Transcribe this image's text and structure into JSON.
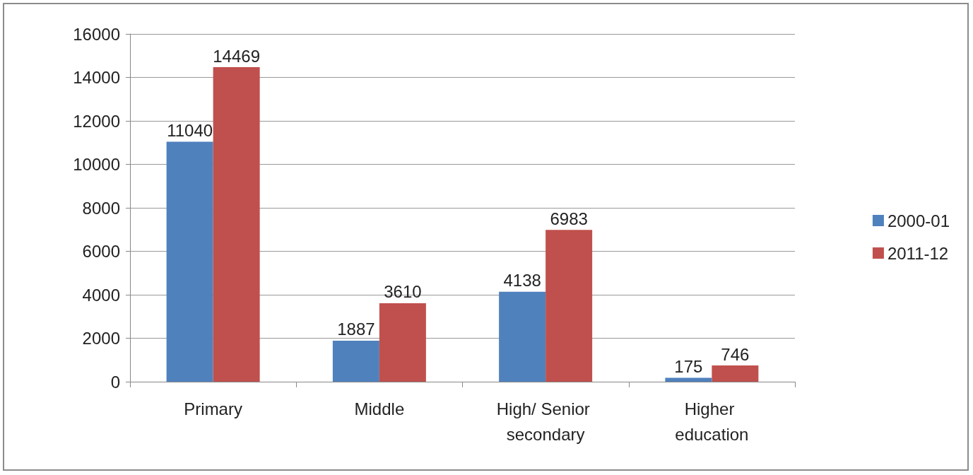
{
  "chart_data": {
    "type": "bar",
    "categories": [
      "Primary",
      "Middle",
      "High/ Senior secondary",
      "Higher education"
    ],
    "series": [
      {
        "name": "2000-01",
        "color": "#4f81bd",
        "values": [
          11040,
          1887,
          4138,
          175
        ]
      },
      {
        "name": "2011-12",
        "color": "#c0504d",
        "values": [
          14469,
          3610,
          6983,
          746
        ]
      }
    ],
    "ylim": [
      0,
      16000
    ],
    "yticks": [
      0,
      2000,
      4000,
      6000,
      8000,
      10000,
      12000,
      14000,
      16000
    ],
    "grid": "y",
    "legend": "right",
    "data_labels": true
  }
}
